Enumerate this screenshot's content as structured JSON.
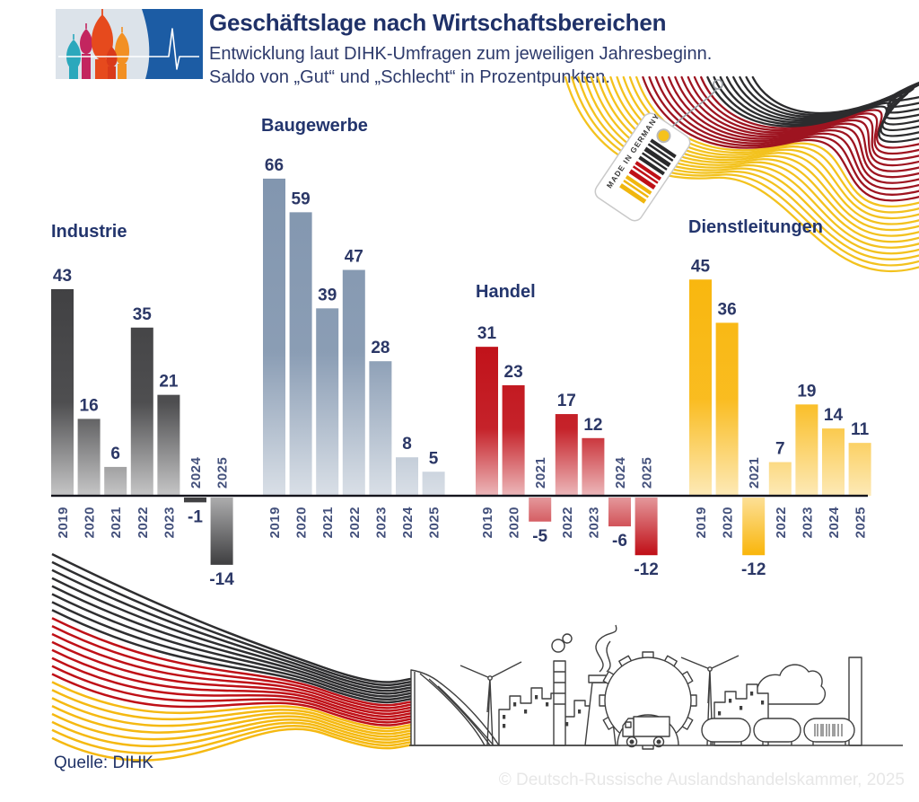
{
  "header": {
    "title": "Geschäftslage nach Wirtschaftsbereichen",
    "subtitle_line1": "Entwicklung laut DIHK-Umfragen zum jeweiligen Jahresbeginn.",
    "subtitle_line2": "Saldo von „Gut“ und „Schlecht“ in Prozentpunkten."
  },
  "footer": {
    "source": "Quelle: DIHK",
    "copyright": "© Deutsch-Russische Auslandshandelskammer, 2025"
  },
  "decor": {
    "tag_text": "MADE IN GERMANY",
    "flag_black": "#2e2e30",
    "flag_red": "#bf1017",
    "flag_gold": "#f5b912",
    "wave_red_dark": "#9e1420",
    "logo_blue": "#1c5ca4"
  },
  "chart_data": {
    "type": "bar",
    "title": "Geschäftslage nach Wirtschaftsbereichen",
    "unit": "Saldo von Gut und Schlecht in Prozentpunkten",
    "categories": [
      "2019",
      "2020",
      "2021",
      "2022",
      "2023",
      "2024",
      "2025"
    ],
    "series": [
      {
        "name": "Industrie",
        "color": "#414143",
        "values": [
          43,
          16,
          6,
          35,
          21,
          -1,
          -14
        ]
      },
      {
        "name": "Baugewerbe",
        "color": "#8296af",
        "values": [
          66,
          59,
          39,
          47,
          28,
          8,
          5
        ]
      },
      {
        "name": "Handel",
        "color": "#c1121a",
        "values": [
          31,
          23,
          -5,
          17,
          12,
          -6,
          -12
        ]
      },
      {
        "name": "Dienstleitungen",
        "color": "#f9b70f",
        "values": [
          45,
          36,
          -12,
          7,
          19,
          14,
          11
        ]
      }
    ],
    "baseline": 0,
    "ylim": [
      -14,
      66
    ],
    "grid": false,
    "value_labels": true,
    "legend_position": "section-headings"
  }
}
